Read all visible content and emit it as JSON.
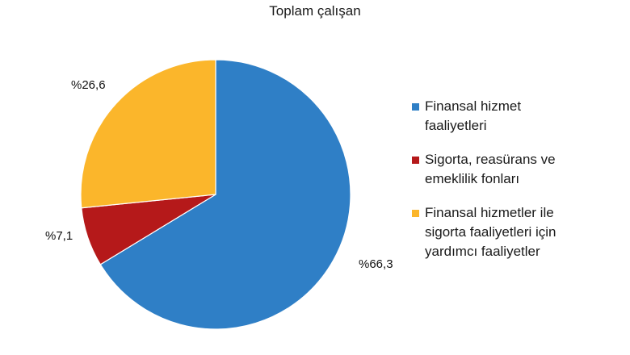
{
  "chart_data": {
    "type": "pie",
    "title": "Toplam çalışan",
    "slices": [
      {
        "label": "Finansal hizmet faaliyetleri",
        "legend_lines": [
          "Finansal hizmet",
          "faaliyetleri"
        ],
        "value": 66.3,
        "display": "%66,3",
        "color": "#2f7fc6"
      },
      {
        "label": "Sigorta, reasürans ve emeklilik fonları",
        "legend_lines": [
          "Sigorta, reasürans ve",
          "emeklilik fonları"
        ],
        "value": 7.1,
        "display": "%7,1",
        "color": "#b5191a"
      },
      {
        "label": "Finansal hizmetler ile sigorta faaliyetleri için yardımcı faaliyetler",
        "legend_lines": [
          "Finansal hizmetler ile",
          "sigorta faaliyetleri için",
          "yardımcı faaliyetler"
        ],
        "value": 26.6,
        "display": "%26,6",
        "color": "#fbb62b"
      }
    ],
    "start_angle": "12 o'clock",
    "direction": "clockwise",
    "legend_position": "right"
  }
}
